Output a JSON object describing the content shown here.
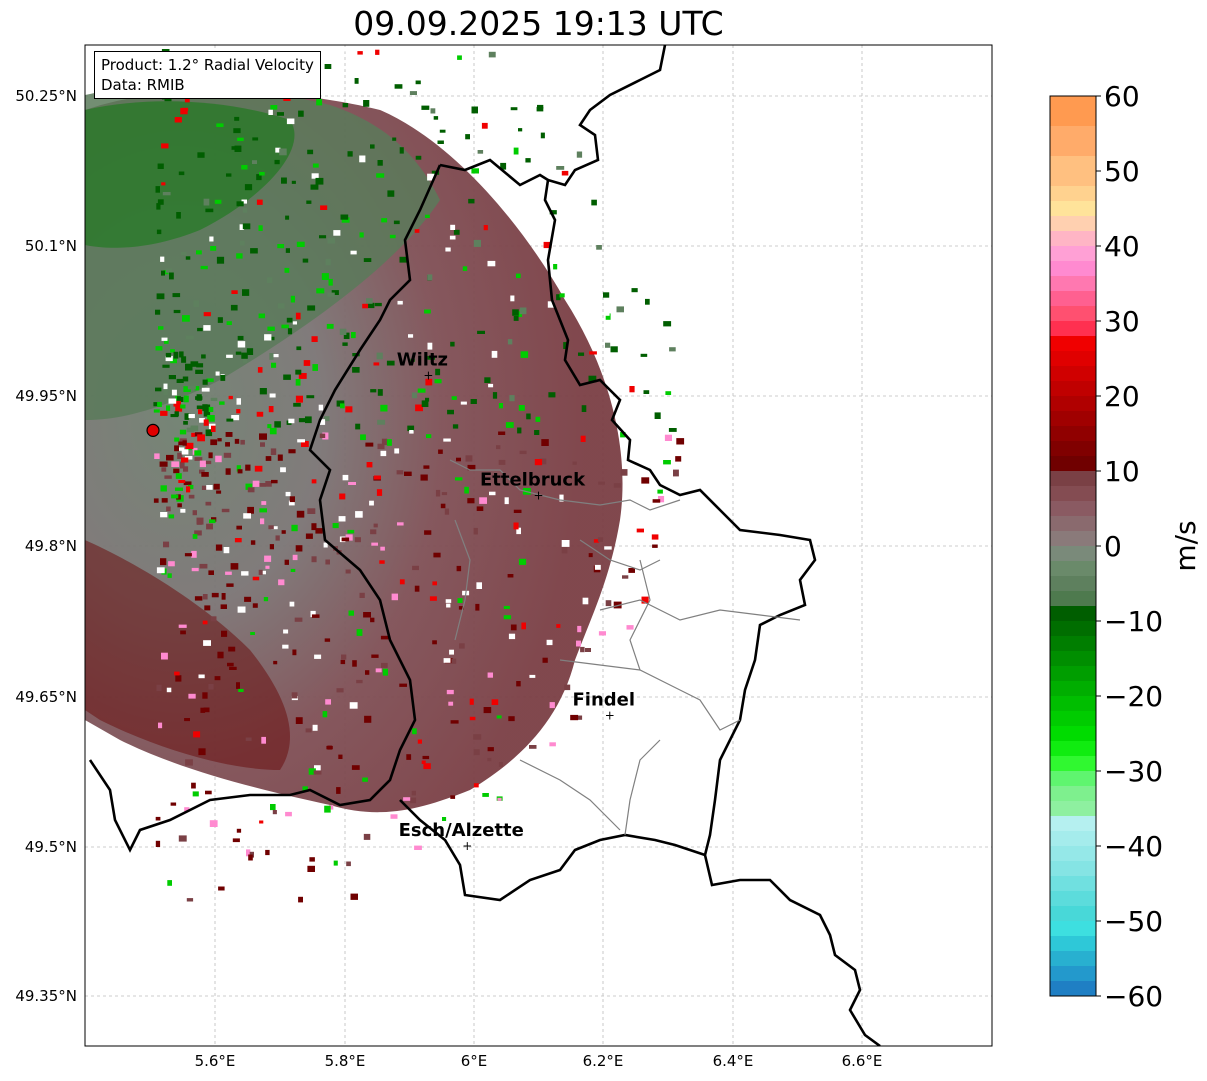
{
  "title": "09.09.2025 19:13 UTC",
  "info_box": {
    "product": "Product: 1.2° Radial Velocity",
    "data": "Data: RMIB"
  },
  "axes": {
    "x_ticks": [
      "5.6°E",
      "5.8°E",
      "6°E",
      "6.2°E",
      "6.4°E",
      "6.6°E"
    ],
    "y_ticks": [
      "50.25°N",
      "50.1°N",
      "49.95°N",
      "49.8°N",
      "49.65°N",
      "49.5°N",
      "49.35°N"
    ],
    "xlim": [
      5.4,
      6.8
    ],
    "ylim": [
      49.3,
      50.3
    ],
    "grid": true
  },
  "cities": [
    {
      "name": "Wiltz",
      "lon": 5.93,
      "lat": 49.97
    },
    {
      "name": "Ettelbruck",
      "lon": 6.1,
      "lat": 49.85
    },
    {
      "name": "Findel",
      "lon": 6.21,
      "lat": 49.63
    },
    {
      "name": "Esch/Alzette",
      "lon": 5.99,
      "lat": 49.5
    }
  ],
  "radar_site": {
    "lon": 5.505,
    "lat": 49.915,
    "color": "#e00000"
  },
  "colorbar": {
    "label": "m/s",
    "min": -60,
    "max": 60,
    "ticks": [
      "60",
      "50",
      "40",
      "30",
      "20",
      "10",
      "0",
      "−10",
      "−20",
      "−30",
      "−40",
      "−50",
      "−60"
    ],
    "colors": {
      "low_blue": "#1f7fc4",
      "cyan": "#3ddfe0",
      "light_cyan": "#b5f0f0",
      "light_green": "#8ef0a0",
      "green": "#00cc00",
      "dark_green": "#005e00",
      "gray_green": "#5e805e",
      "gray": "#8a7a7a",
      "gray_red": "#7a4045",
      "dark_red": "#700000",
      "red": "#f00000",
      "pink": "#ff8ad0",
      "peach": "#ffd79a",
      "orange": "#ff9a50"
    }
  }
}
